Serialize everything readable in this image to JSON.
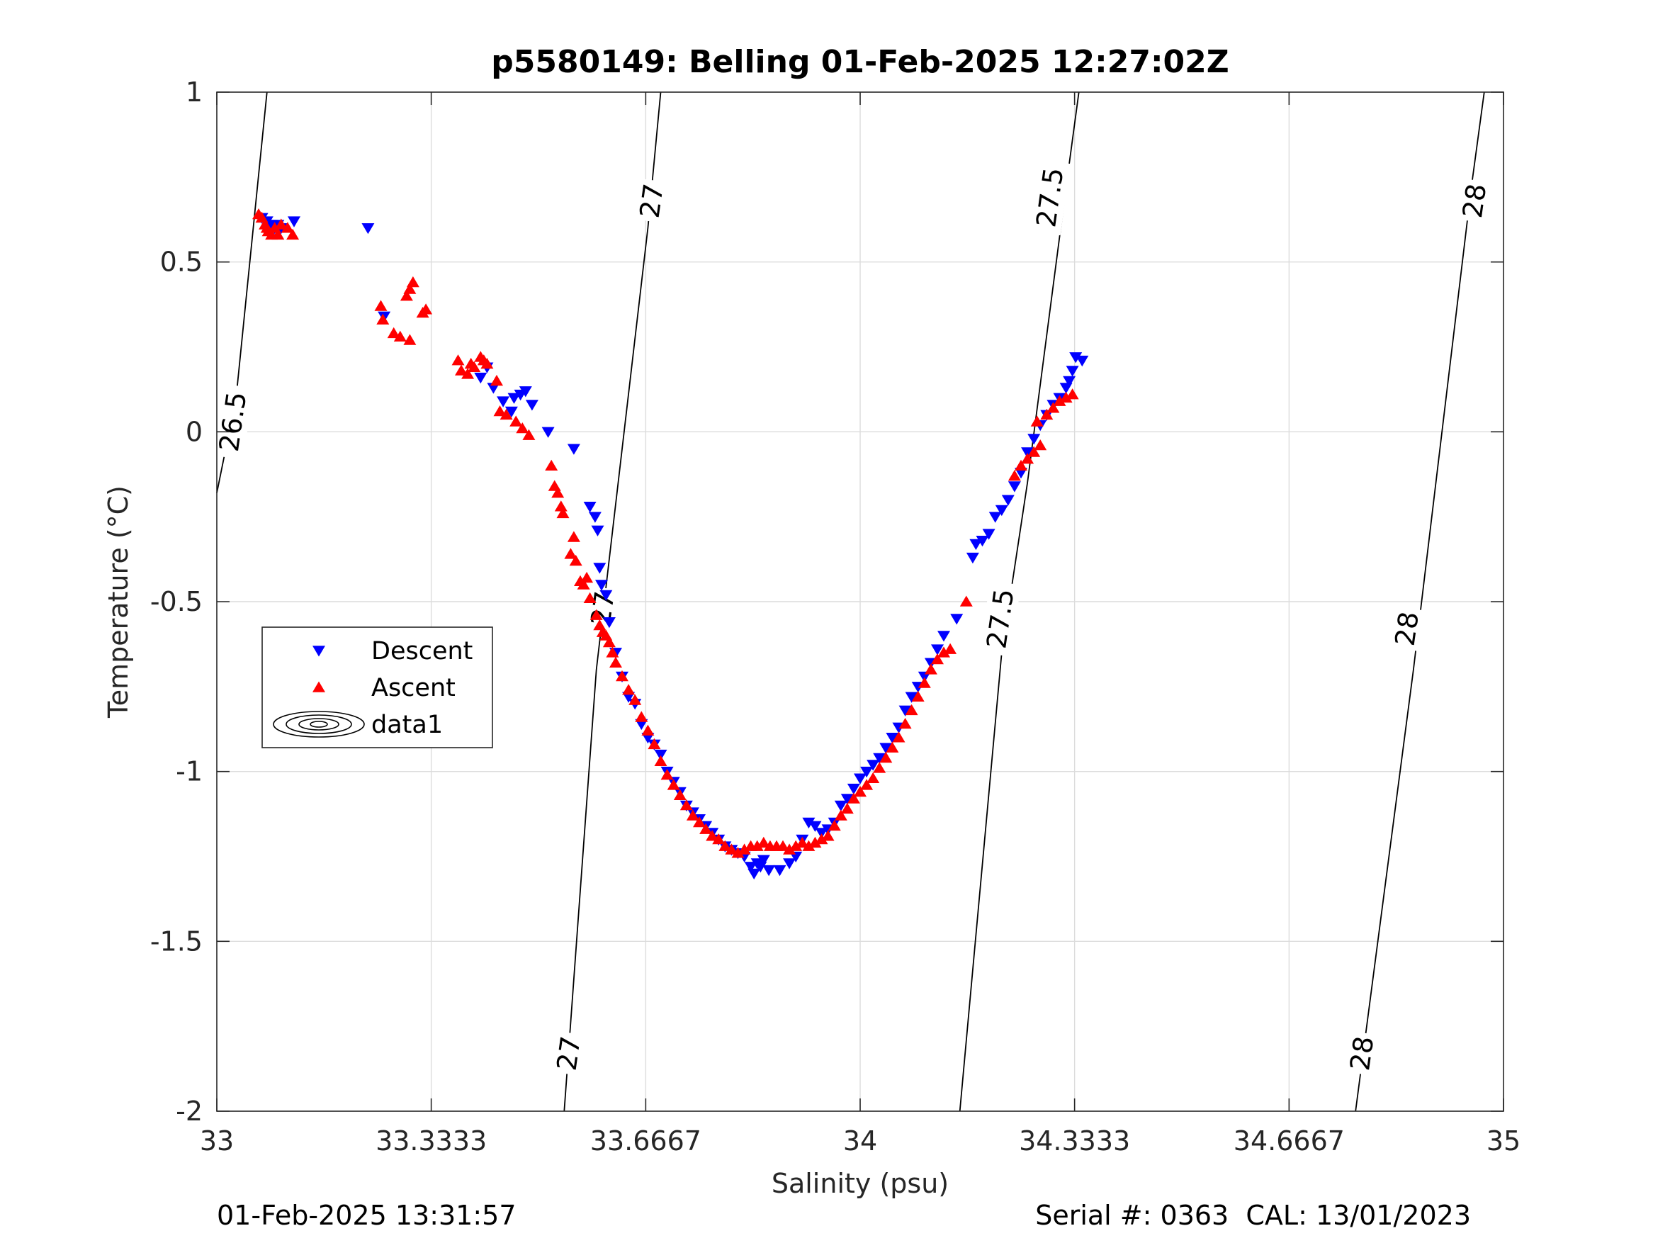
{
  "chart_data": {
    "type": "scatter",
    "title": "p5580149: Belling 01-Feb-2025 12:27:02Z",
    "xlabel": "Salinity (psu)",
    "ylabel": "Temperature (°C)",
    "xlim": [
      33,
      35
    ],
    "ylim": [
      -2,
      1
    ],
    "xticks": [
      33,
      33.3333,
      33.6667,
      34,
      34.3333,
      34.6667,
      35
    ],
    "xtick_labels": [
      "33",
      "33.3333",
      "33.6667",
      "34",
      "34.3333",
      "34.6667",
      "35"
    ],
    "yticks": [
      1,
      0.5,
      0,
      -0.5,
      -1,
      -1.5,
      -2
    ],
    "ytick_labels": [
      "1",
      "0.5",
      "0",
      "-0.5",
      "-1",
      "-1.5",
      "-2"
    ],
    "grid": true,
    "legend_position": "center-left",
    "footer_left": "01-Feb-2025 13:31:57",
    "footer_right": "Serial #: 0363  CAL: 13/01/2023",
    "contours": [
      {
        "level": "26.5",
        "points": [
          [
            33.0,
            -0.18
          ],
          [
            33.03,
            0.1
          ],
          [
            33.078,
            1.0
          ]
        ],
        "labels": [
          [
            33.025,
            0.03
          ]
        ]
      },
      {
        "level": "27",
        "points": [
          [
            33.54,
            -2.0
          ],
          [
            33.59,
            -0.7
          ],
          [
            33.67,
            0.6
          ],
          [
            33.69,
            1.0
          ]
        ],
        "labels": [
          [
            33.547,
            -1.83
          ],
          [
            33.6,
            -0.52
          ],
          [
            33.676,
            0.68
          ]
        ]
      },
      {
        "level": "27.5",
        "points": [
          [
            34.155,
            -2.0
          ],
          [
            34.22,
            -0.65
          ],
          [
            34.26,
            -0.15
          ],
          [
            34.32,
            0.72
          ],
          [
            34.34,
            1.0
          ]
        ],
        "labels": [
          [
            34.218,
            -0.55
          ],
          [
            34.295,
            0.69
          ]
        ]
      },
      {
        "level": "28",
        "points": [
          [
            34.77,
            -2.0
          ],
          [
            34.86,
            -0.7
          ],
          [
            34.95,
            0.72
          ],
          [
            34.97,
            1.0
          ]
        ],
        "labels": [
          [
            34.78,
            -1.83
          ],
          [
            34.85,
            -0.58
          ],
          [
            34.955,
            0.68
          ]
        ]
      }
    ],
    "series": [
      {
        "name": "Descent",
        "color": "#0000ff",
        "marker": "triangle-down",
        "points": [
          [
            33.07,
            0.63
          ],
          [
            33.078,
            0.62
          ],
          [
            33.085,
            0.61
          ],
          [
            33.09,
            0.6
          ],
          [
            33.095,
            0.61
          ],
          [
            33.1,
            0.6
          ],
          [
            33.12,
            0.62
          ],
          [
            33.235,
            0.6
          ],
          [
            33.26,
            0.34
          ],
          [
            33.42,
            0.19
          ],
          [
            33.41,
            0.16
          ],
          [
            33.43,
            0.13
          ],
          [
            33.445,
            0.09
          ],
          [
            33.458,
            0.06
          ],
          [
            33.462,
            0.1
          ],
          [
            33.472,
            0.11
          ],
          [
            33.48,
            0.12
          ],
          [
            33.49,
            0.08
          ],
          [
            33.515,
            0.0
          ],
          [
            33.555,
            -0.05
          ],
          [
            33.58,
            -0.22
          ],
          [
            33.588,
            -0.25
          ],
          [
            33.592,
            -0.29
          ],
          [
            33.595,
            -0.4
          ],
          [
            33.598,
            -0.45
          ],
          [
            33.605,
            -0.48
          ],
          [
            33.61,
            -0.56
          ],
          [
            33.62,
            -0.65
          ],
          [
            33.63,
            -0.72
          ],
          [
            33.64,
            -0.78
          ],
          [
            33.65,
            -0.8
          ],
          [
            33.66,
            -0.86
          ],
          [
            33.67,
            -0.9
          ],
          [
            33.68,
            -0.92
          ],
          [
            33.69,
            -0.95
          ],
          [
            33.7,
            -1.0
          ],
          [
            33.71,
            -1.03
          ],
          [
            33.72,
            -1.06
          ],
          [
            33.73,
            -1.1
          ],
          [
            33.74,
            -1.12
          ],
          [
            33.75,
            -1.14
          ],
          [
            33.76,
            -1.16
          ],
          [
            33.77,
            -1.18
          ],
          [
            33.78,
            -1.2
          ],
          [
            33.79,
            -1.22
          ],
          [
            33.8,
            -1.23
          ],
          [
            33.81,
            -1.24
          ],
          [
            33.82,
            -1.25
          ],
          [
            33.83,
            -1.28
          ],
          [
            33.835,
            -1.3
          ],
          [
            33.84,
            -1.27
          ],
          [
            33.845,
            -1.28
          ],
          [
            33.85,
            -1.26
          ],
          [
            33.858,
            -1.29
          ],
          [
            33.875,
            -1.29
          ],
          [
            33.89,
            -1.27
          ],
          [
            33.9,
            -1.25
          ],
          [
            33.91,
            -1.2
          ],
          [
            33.92,
            -1.15
          ],
          [
            33.93,
            -1.16
          ],
          [
            33.94,
            -1.18
          ],
          [
            33.95,
            -1.17
          ],
          [
            33.96,
            -1.15
          ],
          [
            33.97,
            -1.1
          ],
          [
            33.98,
            -1.08
          ],
          [
            33.99,
            -1.05
          ],
          [
            34.0,
            -1.02
          ],
          [
            34.01,
            -1.0
          ],
          [
            34.02,
            -0.98
          ],
          [
            34.03,
            -0.96
          ],
          [
            34.04,
            -0.93
          ],
          [
            34.05,
            -0.9
          ],
          [
            34.06,
            -0.87
          ],
          [
            34.07,
            -0.82
          ],
          [
            34.08,
            -0.78
          ],
          [
            34.09,
            -0.75
          ],
          [
            34.1,
            -0.72
          ],
          [
            34.11,
            -0.68
          ],
          [
            34.12,
            -0.64
          ],
          [
            34.13,
            -0.6
          ],
          [
            34.15,
            -0.55
          ],
          [
            34.175,
            -0.37
          ],
          [
            34.18,
            -0.33
          ],
          [
            34.19,
            -0.32
          ],
          [
            34.2,
            -0.3
          ],
          [
            34.21,
            -0.25
          ],
          [
            34.22,
            -0.23
          ],
          [
            34.23,
            -0.2
          ],
          [
            34.24,
            -0.16
          ],
          [
            34.25,
            -0.12
          ],
          [
            34.26,
            -0.06
          ],
          [
            34.27,
            -0.02
          ],
          [
            34.28,
            0.02
          ],
          [
            34.29,
            0.05
          ],
          [
            34.3,
            0.08
          ],
          [
            34.31,
            0.1
          ],
          [
            34.32,
            0.13
          ],
          [
            34.325,
            0.15
          ],
          [
            34.33,
            0.18
          ],
          [
            34.335,
            0.22
          ],
          [
            34.345,
            0.21
          ]
        ]
      },
      {
        "name": "Ascent",
        "color": "#ff0000",
        "marker": "triangle-up",
        "points": [
          [
            33.065,
            0.64
          ],
          [
            33.07,
            0.63
          ],
          [
            33.075,
            0.61
          ],
          [
            33.078,
            0.6
          ],
          [
            33.08,
            0.59
          ],
          [
            33.085,
            0.58
          ],
          [
            33.09,
            0.6
          ],
          [
            33.095,
            0.58
          ],
          [
            33.1,
            0.61
          ],
          [
            33.11,
            0.6
          ],
          [
            33.118,
            0.58
          ],
          [
            33.255,
            0.37
          ],
          [
            33.258,
            0.33
          ],
          [
            33.275,
            0.29
          ],
          [
            33.285,
            0.28
          ],
          [
            33.3,
            0.27
          ],
          [
            33.295,
            0.4
          ],
          [
            33.3,
            0.42
          ],
          [
            33.305,
            0.44
          ],
          [
            33.32,
            0.35
          ],
          [
            33.325,
            0.36
          ],
          [
            33.375,
            0.21
          ],
          [
            33.38,
            0.18
          ],
          [
            33.39,
            0.17
          ],
          [
            33.395,
            0.2
          ],
          [
            33.4,
            0.19
          ],
          [
            33.41,
            0.22
          ],
          [
            33.415,
            0.21
          ],
          [
            33.42,
            0.2
          ],
          [
            33.435,
            0.15
          ],
          [
            33.44,
            0.06
          ],
          [
            33.45,
            0.05
          ],
          [
            33.465,
            0.03
          ],
          [
            33.475,
            0.01
          ],
          [
            33.485,
            -0.01
          ],
          [
            33.52,
            -0.1
          ],
          [
            33.525,
            -0.16
          ],
          [
            33.53,
            -0.18
          ],
          [
            33.535,
            -0.22
          ],
          [
            33.538,
            -0.24
          ],
          [
            33.55,
            -0.36
          ],
          [
            33.555,
            -0.31
          ],
          [
            33.558,
            -0.38
          ],
          [
            33.565,
            -0.44
          ],
          [
            33.57,
            -0.45
          ],
          [
            33.575,
            -0.43
          ],
          [
            33.58,
            -0.49
          ],
          [
            33.59,
            -0.54
          ],
          [
            33.595,
            -0.57
          ],
          [
            33.6,
            -0.59
          ],
          [
            33.605,
            -0.6
          ],
          [
            33.61,
            -0.62
          ],
          [
            33.615,
            -0.65
          ],
          [
            33.62,
            -0.68
          ],
          [
            33.63,
            -0.72
          ],
          [
            33.64,
            -0.76
          ],
          [
            33.65,
            -0.79
          ],
          [
            33.66,
            -0.84
          ],
          [
            33.67,
            -0.88
          ],
          [
            33.68,
            -0.92
          ],
          [
            33.69,
            -0.97
          ],
          [
            33.7,
            -1.01
          ],
          [
            33.71,
            -1.04
          ],
          [
            33.72,
            -1.07
          ],
          [
            33.73,
            -1.1
          ],
          [
            33.74,
            -1.13
          ],
          [
            33.75,
            -1.15
          ],
          [
            33.76,
            -1.17
          ],
          [
            33.77,
            -1.19
          ],
          [
            33.78,
            -1.2
          ],
          [
            33.79,
            -1.22
          ],
          [
            33.8,
            -1.23
          ],
          [
            33.81,
            -1.24
          ],
          [
            33.82,
            -1.23
          ],
          [
            33.83,
            -1.22
          ],
          [
            33.84,
            -1.22
          ],
          [
            33.85,
            -1.21
          ],
          [
            33.86,
            -1.22
          ],
          [
            33.87,
            -1.22
          ],
          [
            33.88,
            -1.22
          ],
          [
            33.89,
            -1.23
          ],
          [
            33.9,
            -1.22
          ],
          [
            33.91,
            -1.21
          ],
          [
            33.92,
            -1.22
          ],
          [
            33.93,
            -1.21
          ],
          [
            33.94,
            -1.2
          ],
          [
            33.95,
            -1.19
          ],
          [
            33.96,
            -1.16
          ],
          [
            33.97,
            -1.13
          ],
          [
            33.98,
            -1.11
          ],
          [
            33.99,
            -1.08
          ],
          [
            34.0,
            -1.06
          ],
          [
            34.01,
            -1.04
          ],
          [
            34.02,
            -1.02
          ],
          [
            34.03,
            -0.99
          ],
          [
            34.04,
            -0.96
          ],
          [
            34.05,
            -0.93
          ],
          [
            34.06,
            -0.9
          ],
          [
            34.07,
            -0.86
          ],
          [
            34.08,
            -0.82
          ],
          [
            34.09,
            -0.78
          ],
          [
            34.1,
            -0.74
          ],
          [
            34.11,
            -0.7
          ],
          [
            34.12,
            -0.67
          ],
          [
            34.13,
            -0.65
          ],
          [
            34.14,
            -0.64
          ],
          [
            34.165,
            -0.5
          ],
          [
            34.24,
            -0.13
          ],
          [
            34.25,
            -0.1
          ],
          [
            34.26,
            -0.08
          ],
          [
            34.27,
            -0.06
          ],
          [
            34.275,
            0.03
          ],
          [
            34.28,
            -0.04
          ],
          [
            34.29,
            0.05
          ],
          [
            34.3,
            0.07
          ],
          [
            34.31,
            0.09
          ],
          [
            34.32,
            0.1
          ],
          [
            34.33,
            0.11
          ]
        ]
      }
    ],
    "legend": {
      "entries": [
        {
          "label": "Descent",
          "symbol": "triangle-down",
          "color": "#0000ff"
        },
        {
          "label": "Ascent",
          "symbol": "triangle-up",
          "color": "#ff0000"
        },
        {
          "label": "data1",
          "symbol": "contour",
          "color": "#000000"
        }
      ]
    }
  }
}
